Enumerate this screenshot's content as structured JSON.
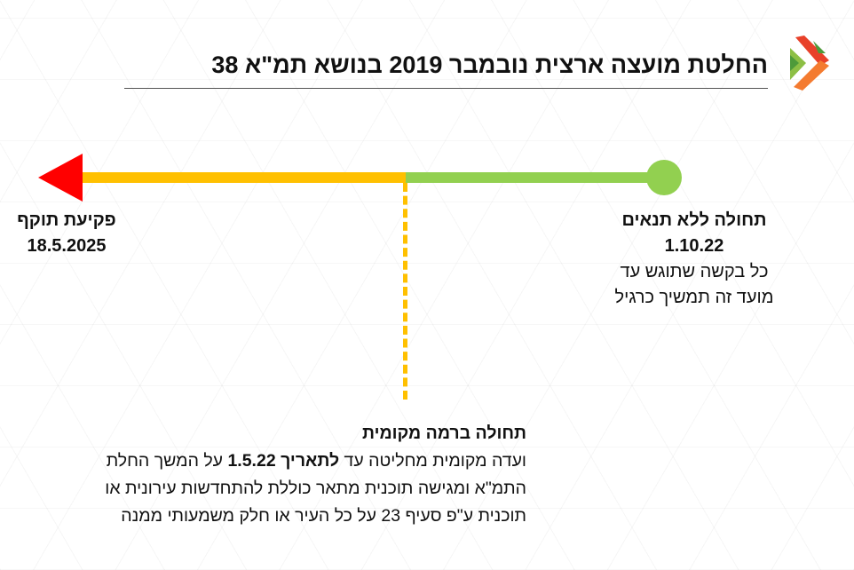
{
  "title": "החלטת מועצה ארצית נובמבר 2019 בנושא תמ\"א 38",
  "logo": {
    "icon": "brand-arrows-logo",
    "colors": [
      "#e8412a",
      "#f47b30",
      "#8dbf45",
      "#4e9a3a"
    ]
  },
  "colors": {
    "start": "#92d050",
    "middle": "#ffc000",
    "end": "#ff0000"
  },
  "start": {
    "heading": "תחולה ללא תנאים",
    "date": "1.10.22",
    "line1": "כל בקשה שתוגש עד",
    "line2": "מועד זה תמשיך כרגיל"
  },
  "end": {
    "heading": "פקיעת תוקף",
    "date": "18.5.2025"
  },
  "local": {
    "heading": "תחולה ברמה מקומית",
    "line1_a": "ועדה מקומית מחליטה עד ",
    "line1_bold": "לתאריך 1.5.22",
    "line1_b": " על המשך החלת",
    "line2": "התמ\"א ומגישה תוכנית מתאר כוללת להתחדשות עירונית או",
    "line3": "תוכנית ע\"פ סעיף 23 על כל העיר או חלק משמעותי ממנה"
  }
}
